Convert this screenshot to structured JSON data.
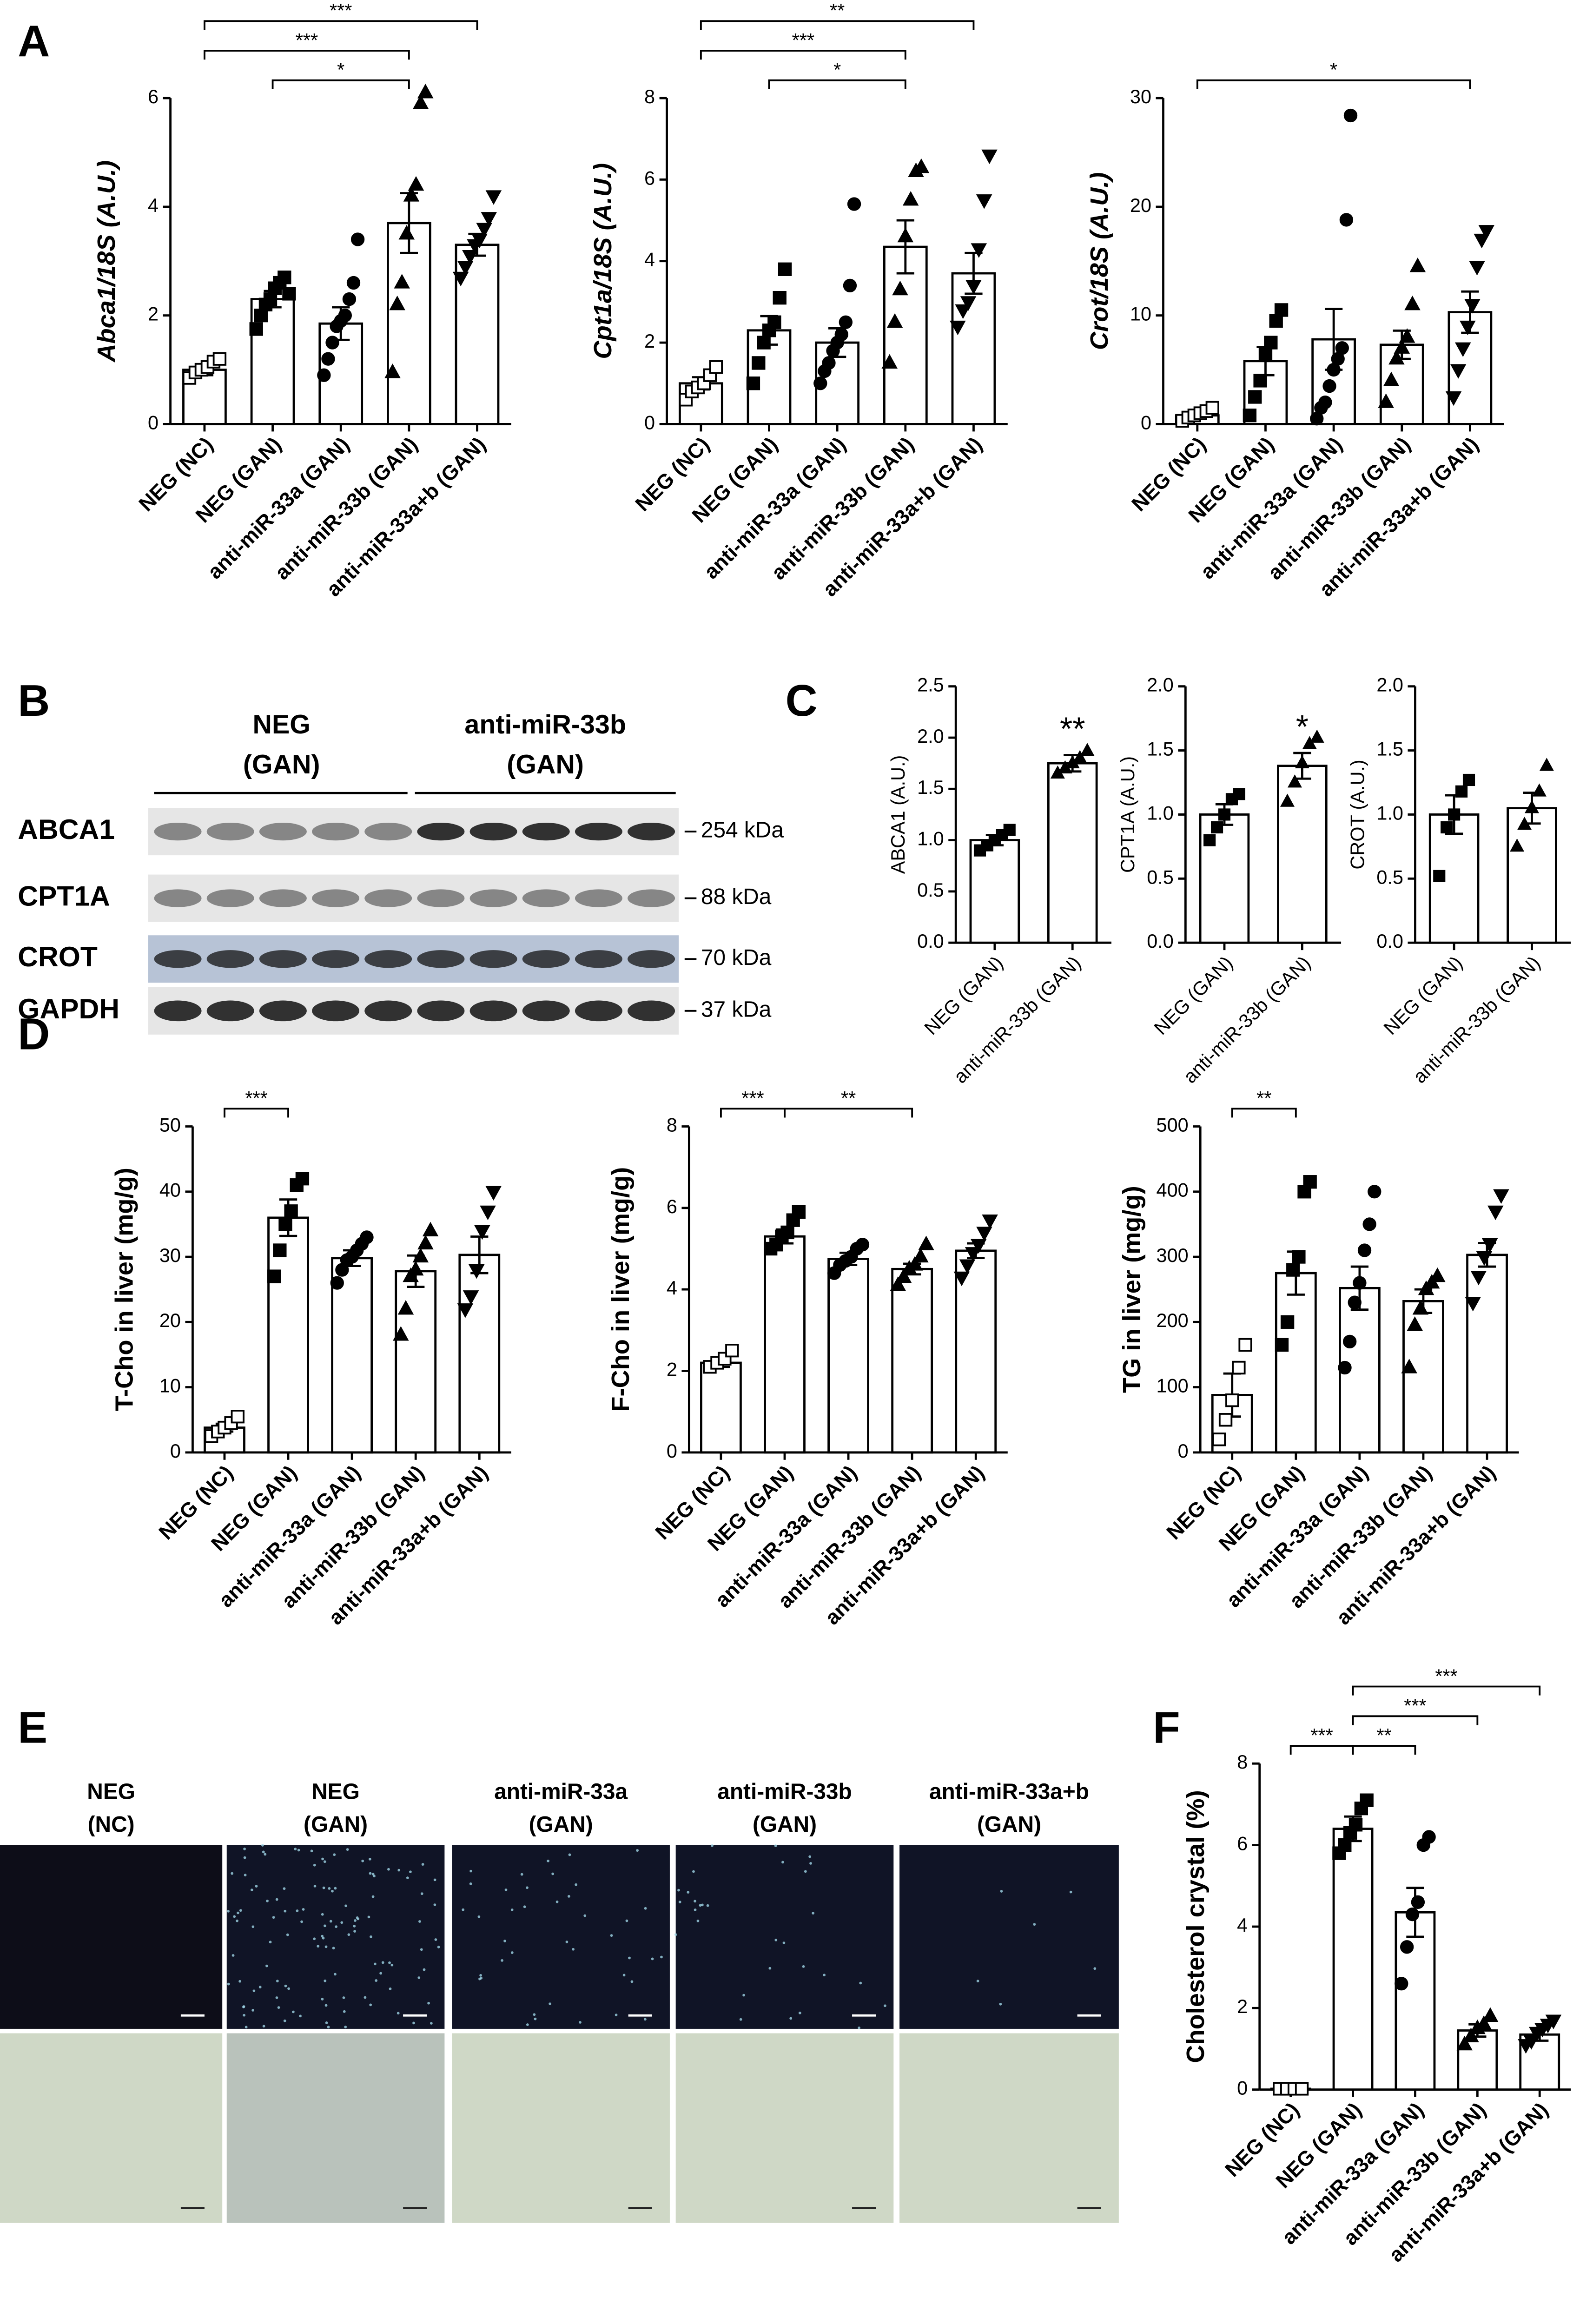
{
  "panel_labels": [
    "A",
    "B",
    "C",
    "D",
    "E",
    "F"
  ],
  "blot": {
    "groups": [
      [
        "NEG",
        "(GAN)"
      ],
      [
        "anti-miR-33b",
        "(GAN)"
      ]
    ],
    "proteins": [
      "ABCA1",
      "CPT1A",
      "CROT",
      "GAPDH"
    ],
    "sizes": [
      "254 kDa",
      "88 kDa",
      "70 kDa",
      "37 kDa"
    ]
  },
  "micrographs": {
    "columns": [
      [
        "NEG",
        "(NC)"
      ],
      [
        "NEG",
        "(GAN)"
      ],
      [
        "anti-miR-33a",
        "(GAN)"
      ],
      [
        "anti-miR-33b",
        "(GAN)"
      ],
      [
        "anti-miR-33a+b",
        "(GAN)"
      ]
    ]
  },
  "chart_data": [
    {
      "type": "bar",
      "y_label": "Abca1/18S (A.U.)",
      "categories": [
        "NEG (NC)",
        "NEG (GAN)",
        "anti-miR-33a (GAN)",
        "anti-miR-33b (GAN)",
        "anti-miR-33a+b (GAN)"
      ],
      "values": [
        1.0,
        2.3,
        1.85,
        3.7,
        3.3
      ],
      "errors": [
        0.1,
        0.15,
        0.3,
        0.55,
        0.2
      ],
      "points": [
        [
          0.85,
          0.95,
          1.0,
          1.05,
          1.15,
          1.2
        ],
        [
          1.75,
          2.0,
          2.2,
          2.3,
          2.5,
          2.6,
          2.7,
          2.4
        ],
        [
          0.9,
          1.2,
          1.5,
          1.8,
          1.9,
          2.0,
          2.3,
          2.6,
          3.4
        ],
        [
          0.95,
          2.2,
          2.6,
          3.5,
          4.2,
          4.4,
          5.9,
          6.1
        ],
        [
          2.7,
          2.9,
          3.1,
          3.3,
          3.4,
          3.6,
          3.8,
          4.2
        ]
      ],
      "markers": [
        "square-open",
        "square",
        "circle",
        "triangle",
        "triangle-down"
      ],
      "color": "#ffffff",
      "ylim": [
        0,
        6
      ],
      "yticks": [
        0,
        2,
        4,
        6
      ],
      "annotations": [
        {
          "label": "***",
          "between": [
            "NEG (NC)",
            "anti-miR-33a+b (GAN)"
          ]
        },
        {
          "label": "***",
          "between": [
            "NEG (NC)",
            "anti-miR-33b (GAN)"
          ]
        },
        {
          "label": "*",
          "between": [
            "NEG (GAN)",
            "anti-miR-33b (GAN)"
          ]
        }
      ]
    },
    {
      "type": "bar",
      "y_label": "Cpt1a/18S (A.U.)",
      "categories": [
        "NEG (NC)",
        "NEG (GAN)",
        "anti-miR-33a (GAN)",
        "anti-miR-33b (GAN)",
        "anti-miR-33a+b (GAN)"
      ],
      "values": [
        1.0,
        2.3,
        2.0,
        4.35,
        3.7
      ],
      "errors": [
        0.15,
        0.35,
        0.35,
        0.65,
        0.5
      ],
      "points": [
        [
          0.6,
          0.8,
          0.9,
          1.0,
          1.2,
          1.4
        ],
        [
          1.0,
          1.5,
          2.0,
          2.3,
          2.5,
          3.1,
          3.8
        ],
        [
          1.0,
          1.3,
          1.5,
          1.8,
          2.0,
          2.2,
          2.5,
          3.4,
          5.4
        ],
        [
          1.5,
          2.5,
          3.3,
          4.6,
          5.5,
          6.2,
          6.3
        ],
        [
          2.4,
          2.8,
          3.0,
          3.4,
          4.3,
          5.5,
          6.6
        ]
      ],
      "markers": [
        "square-open",
        "square",
        "circle",
        "triangle",
        "triangle-down"
      ],
      "color": "#ffffff",
      "ylim": [
        0,
        8
      ],
      "yticks": [
        0,
        2,
        4,
        6,
        8
      ],
      "annotations": [
        {
          "label": "**",
          "between": [
            "NEG (NC)",
            "anti-miR-33a+b (GAN)"
          ]
        },
        {
          "label": "***",
          "between": [
            "NEG (NC)",
            "anti-miR-33b (GAN)"
          ]
        },
        {
          "label": "*",
          "between": [
            "NEG (GAN)",
            "anti-miR-33b (GAN)"
          ]
        }
      ]
    },
    {
      "type": "bar",
      "y_label": "Crot/18S (A.U.)",
      "categories": [
        "NEG (NC)",
        "NEG (GAN)",
        "anti-miR-33a (GAN)",
        "anti-miR-33b (GAN)",
        "anti-miR-33a+b (GAN)"
      ],
      "values": [
        0.8,
        5.8,
        7.8,
        7.3,
        10.3
      ],
      "errors": [
        0.3,
        1.3,
        2.8,
        1.3,
        1.9
      ],
      "points": [
        [
          0.3,
          0.6,
          0.8,
          1.0,
          1.2,
          1.5
        ],
        [
          0.8,
          2.5,
          4.0,
          6.5,
          7.5,
          9.5,
          10.5
        ],
        [
          0.5,
          1.5,
          2.0,
          3.5,
          5.0,
          6.0,
          7.0,
          18.8,
          28.4
        ],
        [
          2.0,
          4.0,
          6.0,
          7.0,
          8.0,
          11.0,
          14.5
        ],
        [
          2.5,
          5.0,
          7.0,
          9.0,
          11.0,
          14.5,
          17.0,
          17.8
        ]
      ],
      "markers": [
        "square-open",
        "square",
        "circle",
        "triangle",
        "triangle-down"
      ],
      "color": "#ffffff",
      "ylim": [
        0,
        30
      ],
      "yticks": [
        0,
        10,
        20,
        30
      ],
      "annotations": [
        {
          "label": "*",
          "between": [
            "NEG (NC)",
            "anti-miR-33a+b (GAN)"
          ]
        }
      ]
    },
    {
      "type": "bar",
      "y_label": "ABCA1 (A.U.)",
      "categories": [
        "NEG (GAN)",
        "anti-miR-33b (GAN)"
      ],
      "values": [
        1.0,
        1.75
      ],
      "errors": [
        0.05,
        0.08
      ],
      "points": [
        [
          0.9,
          0.95,
          1.0,
          1.05,
          1.1
        ],
        [
          1.65,
          1.7,
          1.75,
          1.8,
          1.87
        ]
      ],
      "markers": [
        "square",
        "triangle"
      ],
      "color": "#ffffff",
      "ylim": [
        0,
        2.5
      ],
      "yticks": [
        {
          "value": 0,
          "label": "0.0"
        },
        {
          "value": 0.5,
          "label": "0.5"
        },
        {
          "value": 1,
          "label": "1.0"
        },
        {
          "value": 1.5,
          "label": "1.5"
        },
        {
          "value": 2,
          "label": "2.0"
        },
        {
          "value": 2.5,
          "label": "2.5"
        }
      ],
      "annotations": [
        {
          "label": "**",
          "over": "anti-miR-33b (GAN)"
        }
      ]
    },
    {
      "type": "bar",
      "y_label": "CPT1A (A.U.)",
      "categories": [
        "NEG (GAN)",
        "anti-miR-33b (GAN)"
      ],
      "values": [
        1.0,
        1.38
      ],
      "errors": [
        0.08,
        0.1
      ],
      "points": [
        [
          0.8,
          0.9,
          1.0,
          1.12,
          1.16
        ],
        [
          1.1,
          1.25,
          1.4,
          1.55,
          1.6
        ]
      ],
      "markers": [
        "square",
        "triangle"
      ],
      "color": "#ffffff",
      "ylim": [
        0,
        2
      ],
      "yticks": [
        {
          "value": 0,
          "label": "0.0"
        },
        {
          "value": 0.5,
          "label": "0.5"
        },
        {
          "value": 1,
          "label": "1.0"
        },
        {
          "value": 1.5,
          "label": "1.5"
        },
        {
          "value": 2,
          "label": "2.0"
        }
      ],
      "annotations": [
        {
          "label": "*",
          "over": "anti-miR-33b (GAN)"
        }
      ]
    },
    {
      "type": "bar",
      "y_label": "CROT (A.U.)",
      "categories": [
        "NEG (GAN)",
        "anti-miR-33b (GAN)"
      ],
      "values": [
        1.0,
        1.05
      ],
      "errors": [
        0.15,
        0.12
      ],
      "points": [
        [
          0.52,
          0.9,
          1.0,
          1.18,
          1.27
        ],
        [
          0.75,
          0.92,
          1.05,
          1.18,
          1.38
        ]
      ],
      "markers": [
        "square",
        "triangle"
      ],
      "color": "#ffffff",
      "ylim": [
        0,
        2
      ],
      "yticks": [
        {
          "value": 0,
          "label": "0.0"
        },
        {
          "value": 0.5,
          "label": "0.5"
        },
        {
          "value": 1,
          "label": "1.0"
        },
        {
          "value": 1.5,
          "label": "1.5"
        },
        {
          "value": 2,
          "label": "2.0"
        }
      ],
      "annotations": []
    },
    {
      "type": "bar",
      "y_label": "T-Cho in liver (mg/g)",
      "categories": [
        "NEG (NC)",
        "NEG (GAN)",
        "anti-miR-33a (GAN)",
        "anti-miR-33b (GAN)",
        "anti-miR-33a+b (GAN)"
      ],
      "values": [
        3.8,
        36,
        29.8,
        27.8,
        30.3
      ],
      "errors": [
        0.6,
        2.8,
        1.2,
        2.4,
        2.8
      ],
      "points": [
        [
          2.5,
          3.2,
          3.8,
          4.5,
          5.5
        ],
        [
          27,
          31,
          35,
          37,
          41,
          42
        ],
        [
          26,
          28,
          29.5,
          30,
          31,
          32,
          33
        ],
        [
          18,
          22,
          27,
          28,
          30,
          32,
          34
        ],
        [
          22,
          24,
          28,
          34,
          37,
          40
        ]
      ],
      "markers": [
        "square-open",
        "square",
        "circle",
        "triangle",
        "triangle-down"
      ],
      "color": "#ffffff",
      "ylim": [
        0,
        50
      ],
      "yticks": [
        0,
        10,
        20,
        30,
        40,
        50
      ],
      "annotations": [
        {
          "label": "***",
          "between": [
            "NEG (NC)",
            "NEG (GAN)"
          ]
        }
      ]
    },
    {
      "type": "bar",
      "y_label": "F-Cho in liver (mg/g)",
      "categories": [
        "NEG (NC)",
        "NEG (GAN)",
        "anti-miR-33a (GAN)",
        "anti-miR-33b (GAN)",
        "anti-miR-33a+b (GAN)"
      ],
      "values": [
        2.2,
        5.3,
        4.75,
        4.5,
        4.95
      ],
      "errors": [
        0.1,
        0.17,
        0.15,
        0.13,
        0.18
      ],
      "points": [
        [
          2.1,
          2.2,
          2.3,
          2.5
        ],
        [
          5.0,
          5.1,
          5.3,
          5.4,
          5.7,
          5.9
        ],
        [
          4.4,
          4.6,
          4.7,
          4.8,
          5.0,
          5.1
        ],
        [
          4.1,
          4.3,
          4.5,
          4.6,
          4.8,
          5.1
        ],
        [
          4.3,
          4.6,
          4.9,
          5.1,
          5.4,
          5.7
        ]
      ],
      "markers": [
        "square-open",
        "square",
        "circle",
        "triangle",
        "triangle-down"
      ],
      "color": "#ffffff",
      "ylim": [
        0,
        8
      ],
      "yticks": [
        0,
        2,
        4,
        6,
        8
      ],
      "annotations": [
        {
          "label": "***",
          "between": [
            "NEG (NC)",
            "NEG (GAN)"
          ]
        },
        {
          "label": "**",
          "between": [
            "NEG (GAN)",
            "anti-miR-33b (GAN)"
          ]
        }
      ]
    },
    {
      "type": "bar",
      "y_label": "TG in liver (mg/g)",
      "categories": [
        "NEG (NC)",
        "NEG (GAN)",
        "anti-miR-33a (GAN)",
        "anti-miR-33b (GAN)",
        "anti-miR-33a+b (GAN)"
      ],
      "values": [
        88,
        275,
        252,
        232,
        303
      ],
      "errors": [
        33,
        33,
        33,
        18,
        18
      ],
      "points": [
        [
          20,
          50,
          80,
          130,
          165
        ],
        [
          165,
          200,
          280,
          300,
          400,
          415
        ],
        [
          130,
          170,
          230,
          260,
          310,
          350,
          400
        ],
        [
          130,
          195,
          220,
          250,
          260,
          270
        ],
        [
          230,
          270,
          300,
          320,
          370,
          395
        ]
      ],
      "markers": [
        "square-open",
        "square",
        "circle",
        "triangle",
        "triangle-down"
      ],
      "color": "#ffffff",
      "ylim": [
        0,
        500
      ],
      "yticks": [
        0,
        100,
        200,
        300,
        400,
        500
      ],
      "annotations": [
        {
          "label": "**",
          "between": [
            "NEG (NC)",
            "NEG (GAN)"
          ]
        }
      ]
    },
    {
      "type": "bar",
      "y_label": "Cholesterol crystal (%)",
      "categories": [
        "NEG (NC)",
        "NEG (GAN)",
        "anti-miR-33a (GAN)",
        "anti-miR-33b (GAN)",
        "anti-miR-33a+b (GAN)"
      ],
      "values": [
        0.02,
        6.4,
        4.35,
        1.45,
        1.35
      ],
      "errors": [
        0.01,
        0.3,
        0.6,
        0.15,
        0.15
      ],
      "points": [
        [
          0.02,
          0.02,
          0.02,
          0.02
        ],
        [
          5.8,
          6.0,
          6.3,
          6.5,
          6.9,
          7.1
        ],
        [
          2.6,
          3.5,
          4.3,
          4.6,
          6.0,
          6.2
        ],
        [
          1.1,
          1.3,
          1.5,
          1.6,
          1.8
        ],
        [
          1.1,
          1.2,
          1.4,
          1.5,
          1.6,
          1.7
        ]
      ],
      "markers": [
        "square-open",
        "square",
        "circle",
        "triangle",
        "triangle-down"
      ],
      "color": "#ffffff",
      "ylim": [
        0,
        8
      ],
      "yticks": [
        0,
        2,
        4,
        6,
        8
      ],
      "annotations": [
        {
          "label": "***",
          "between": [
            "NEG (NC)",
            "NEG (GAN)"
          ]
        },
        {
          "label": "**",
          "between": [
            "NEG (GAN)",
            "anti-miR-33a (GAN)"
          ]
        },
        {
          "label": "***",
          "between": [
            "NEG (GAN)",
            "anti-miR-33b (GAN)"
          ]
        },
        {
          "label": "***",
          "between": [
            "NEG (GAN)",
            "anti-miR-33a+b (GAN)"
          ]
        }
      ]
    }
  ]
}
